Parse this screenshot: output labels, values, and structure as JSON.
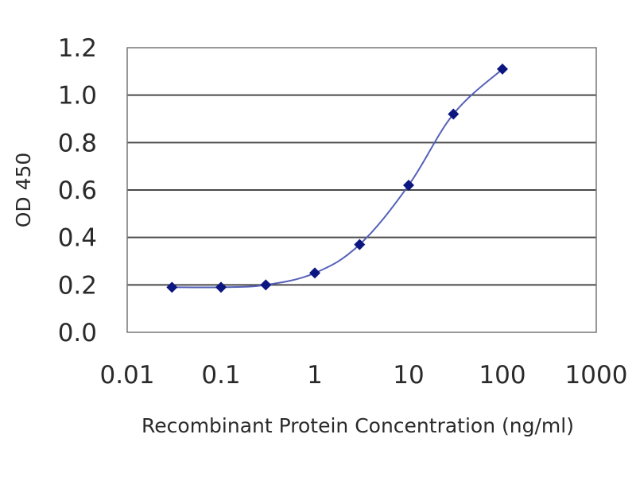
{
  "chart_data": {
    "type": "line",
    "title": "",
    "xlabel": "Recombinant Protein Concentration (ng/ml)",
    "ylabel": "OD 450",
    "x_scale": "log",
    "xlim": [
      0.01,
      1000
    ],
    "ylim": [
      0.0,
      1.2
    ],
    "x_ticks": [
      "0.01",
      "0.1",
      "1",
      "10",
      "100",
      "1000"
    ],
    "y_ticks": [
      "0.0",
      "0.2",
      "0.4",
      "0.6",
      "0.8",
      "1.0",
      "1.2"
    ],
    "grid": "horizontal",
    "legend": "none",
    "series": [
      {
        "x": [
          0.03,
          0.1,
          0.3,
          1,
          3,
          10,
          30,
          100
        ],
        "y": [
          0.19,
          0.19,
          0.2,
          0.25,
          0.37,
          0.62,
          0.92,
          1.11
        ]
      }
    ],
    "colors": {
      "line": "#5561b8",
      "marker": "#0c1680",
      "grid": "#4a4a4a",
      "frame": "#777777",
      "background": "#ffffff"
    }
  }
}
